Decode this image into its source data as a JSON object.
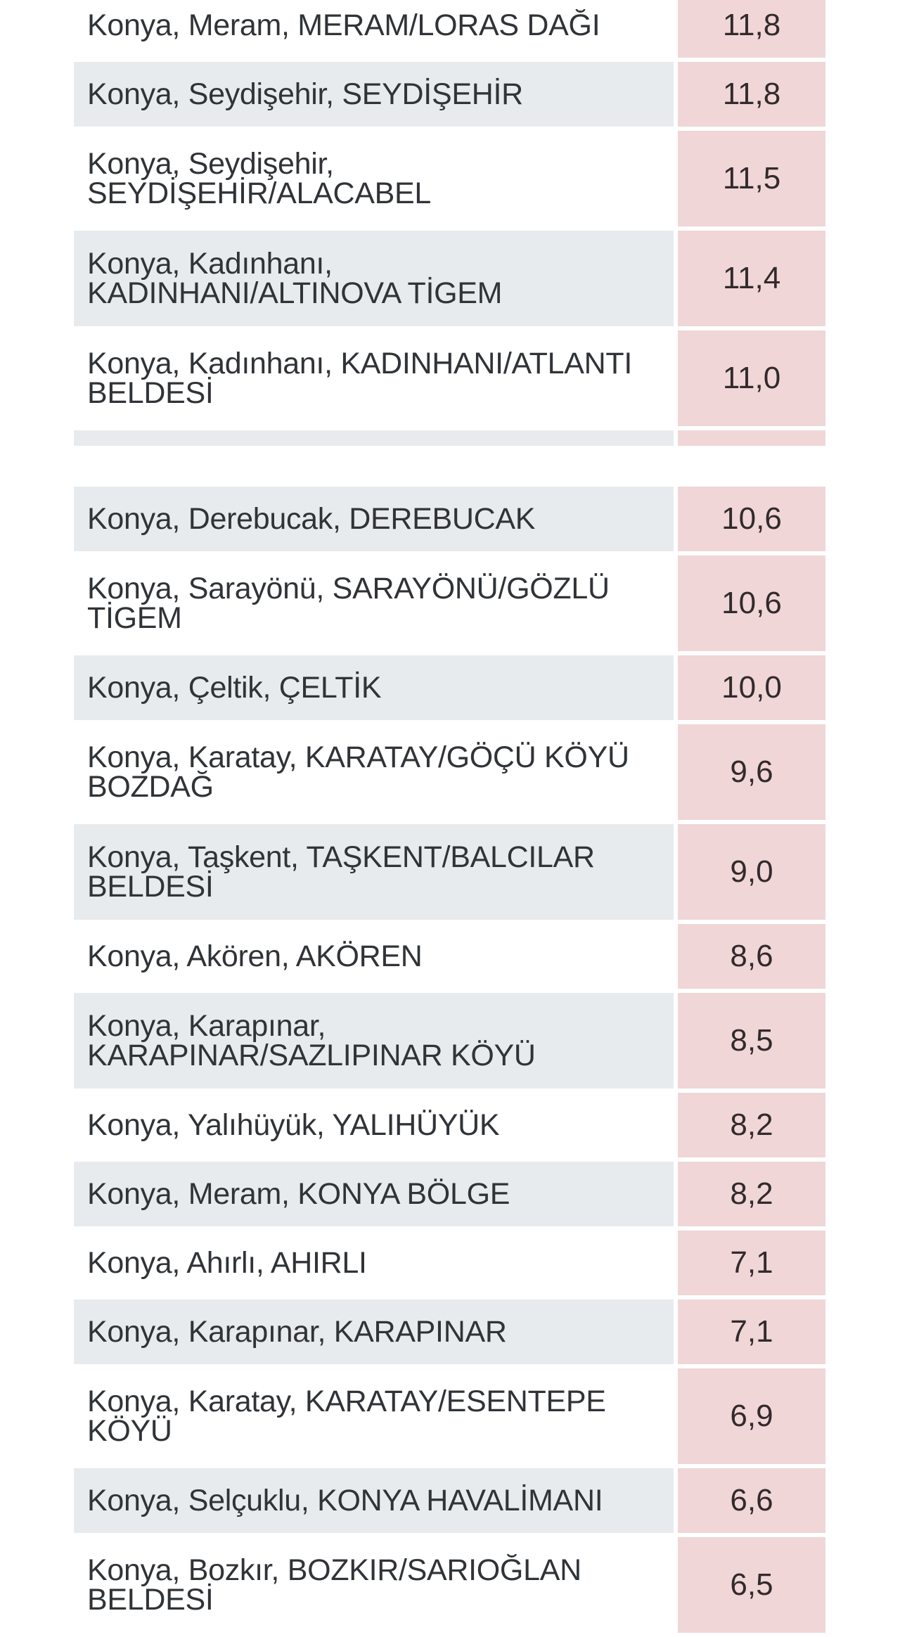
{
  "colors": {
    "page_bg": "#ffffff",
    "row_gray_bg": "#e8ebee",
    "value_cell_bg": "#f0d6d7",
    "station_text": "#303337",
    "value_text": "#322a2c"
  },
  "table": {
    "sections": [
      {
        "first_shade": "white",
        "rows": [
          {
            "station": "Konya, Meram, MERAM/LORAS DAĞI",
            "value": "11,8"
          },
          {
            "station": "Konya, Seydişehir, SEYDİŞEHİR",
            "value": "11,8"
          },
          {
            "station": "Konya, Seydişehir,\nSEYDİŞEHİR/ALACABEL",
            "value": "11,5"
          },
          {
            "station": "Konya, Kadınhanı,\nKADINHANI/ALTINOVA TİGEM",
            "value": "11,4"
          },
          {
            "station": "Konya, Kadınhanı, KADINHANI/ATLANTI\nBELDESİ",
            "value": "11,0"
          },
          {
            "station": "",
            "value": "",
            "partial": true
          }
        ]
      },
      {
        "first_shade": "gray",
        "rows": [
          {
            "station": "Konya, Derebucak, DEREBUCAK",
            "value": "10,6"
          },
          {
            "station": "Konya, Sarayönü, SARAYÖNÜ/GÖZLÜ\nTİGEM",
            "value": "10,6"
          },
          {
            "station": "Konya, Çeltik, ÇELTİK",
            "value": "10,0"
          },
          {
            "station": "Konya, Karatay, KARATAY/GÖÇÜ KÖYÜ\nBOZDAĞ",
            "value": "9,6"
          },
          {
            "station": "Konya, Taşkent, TAŞKENT/BALCILAR\nBELDESİ",
            "value": "9,0"
          },
          {
            "station": "Konya, Akören, AKÖREN",
            "value": "8,6"
          },
          {
            "station": "Konya, Karapınar,\nKARAPINAR/SAZLIPINAR KÖYÜ",
            "value": "8,5"
          },
          {
            "station": "Konya, Yalıhüyük, YALIHÜYÜK",
            "value": "8,2"
          },
          {
            "station": "Konya, Meram, KONYA BÖLGE",
            "value": "8,2"
          },
          {
            "station": "Konya, Ahırlı, AHIRLI",
            "value": "7,1"
          },
          {
            "station": "Konya, Karapınar, KARAPINAR",
            "value": "7,1"
          },
          {
            "station": "Konya, Karatay, KARATAY/ESENTEPE\nKÖYÜ",
            "value": "6,9"
          },
          {
            "station": "Konya, Selçuklu, KONYA HAVALİMANI",
            "value": "6,6"
          },
          {
            "station": "Konya, Bozkır, BOZKIR/SARIOĞLAN\nBELDESİ",
            "value": "6,5"
          }
        ]
      }
    ]
  }
}
